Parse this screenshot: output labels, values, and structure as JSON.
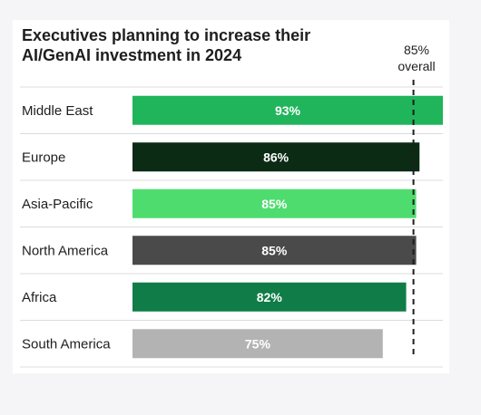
{
  "chart_data": {
    "type": "bar",
    "orientation": "horizontal",
    "title": "Executives planning to increase their AI/GenAI investment in 2024",
    "categories": [
      "Middle East",
      "Europe",
      "Asia-Pacific",
      "North America",
      "Africa",
      "South America"
    ],
    "values": [
      93,
      86,
      85,
      85,
      82,
      75
    ],
    "value_labels": [
      "93%",
      "86%",
      "85%",
      "85%",
      "82%",
      "75%"
    ],
    "colors": [
      "#21b55b",
      "#0b2b14",
      "#4fdc6f",
      "#4a4a4a",
      "#107c47",
      "#b3b3b3"
    ],
    "reference_line": {
      "value": 85,
      "label_line1": "85%",
      "label_line2": "overall",
      "style": "dashed"
    },
    "xlim": [
      0,
      93
    ],
    "grid": "horizontal separators between rows",
    "legend": "none"
  }
}
